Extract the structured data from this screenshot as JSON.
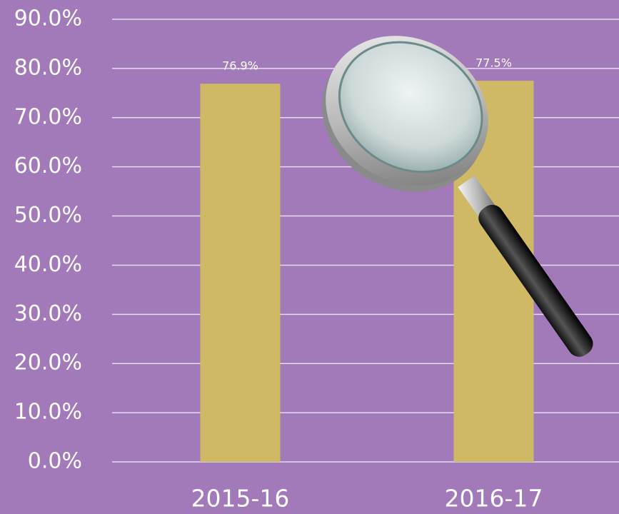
{
  "chart_data": {
    "type": "bar",
    "categories": [
      "2015-16",
      "2016-17"
    ],
    "values": [
      76.9,
      77.5
    ],
    "value_labels": [
      "76.9%",
      "77.5%"
    ],
    "color": "#cfb964",
    "ylim": [
      0,
      90
    ],
    "yticks": [
      {
        "value": 0,
        "label": "0.0%"
      },
      {
        "value": 10,
        "label": "10.0%"
      },
      {
        "value": 20,
        "label": "20.0%"
      },
      {
        "value": 30,
        "label": "30.0%"
      },
      {
        "value": 40,
        "label": "40.0%"
      },
      {
        "value": 50,
        "label": "50.0%"
      },
      {
        "value": 60,
        "label": "60.0%"
      },
      {
        "value": 70,
        "label": "70.0%"
      },
      {
        "value": 80,
        "label": "80.0%"
      },
      {
        "value": 90,
        "label": "90.0%"
      }
    ],
    "grid": true
  }
}
